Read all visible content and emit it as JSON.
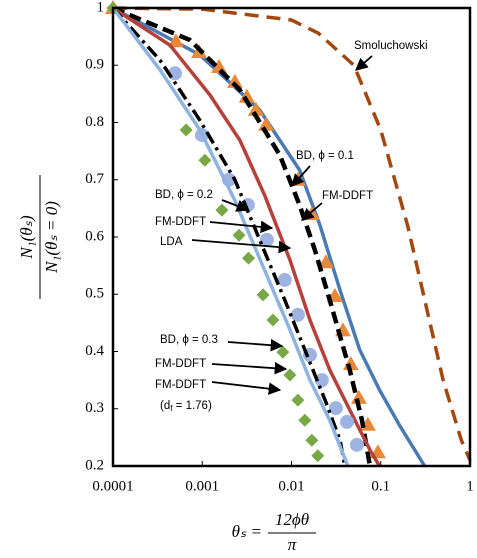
{
  "chart_data": {
    "type": "line",
    "xlim": [
      0.0001,
      1
    ],
    "ylim": [
      0.2,
      1
    ],
    "xscale": "log",
    "grid": false,
    "xticks": [
      0.0001,
      0.001,
      0.01,
      0.1,
      1
    ],
    "yticks": [
      0.2,
      0.3,
      0.4,
      0.5,
      0.6,
      0.7,
      0.8,
      0.9,
      1
    ],
    "xlabel": {
      "lhs": "θₛ =",
      "numerator": "12ϕθ",
      "denominator": "π"
    },
    "ylabel": {
      "numerator": "N₁(θₛ)",
      "denominator": "N₁(θₛ = 0)"
    },
    "annotations": [
      "Smoluchowski",
      "BD, ϕ = 0.1",
      "FM-DDFT",
      "BD, ϕ = 0.2",
      "FM-DDFT",
      "LDA",
      "BD, ϕ = 0.3",
      "FM-DDFT",
      "FM-DDFT",
      [
        "(d",
        "f",
        " = 1.76)"
      ]
    ],
    "series": [
      {
        "color": "#a3470f",
        "style": "dashed",
        "x": [
          0.0001,
          0.001,
          0.01,
          0.02,
          0.05,
          0.1,
          0.2,
          0.5,
          0.8,
          1
        ],
        "values": [
          1,
          0.998,
          0.979,
          0.956,
          0.9,
          0.787,
          0.62,
          0.35,
          0.245,
          0.21
        ]
      },
      {
        "color": "#4a7ab5",
        "style": "solid",
        "x": [
          0.0001,
          0.00094,
          0.0044,
          0.0123,
          0.0208,
          0.035,
          0.0581,
          0.0968,
          0.161,
          0.31
        ],
        "values": [
          1,
          0.918,
          0.822,
          0.717,
          0.621,
          0.507,
          0.403,
          0.333,
          0.272,
          0.2
        ]
      },
      {
        "color": "#e8893a",
        "style": "triangle",
        "x": [
          0.0001,
          0.000507,
          0.00092,
          0.00154,
          0.00232,
          0.00316,
          0.004,
          0.0052,
          0.0118,
          0.0169,
          0.0243,
          0.0306,
          0.0377,
          0.0462,
          0.0569,
          0.0718,
          0.093
        ],
        "values": [
          1,
          0.942,
          0.923,
          0.897,
          0.871,
          0.845,
          0.822,
          0.796,
          0.7,
          0.64,
          0.556,
          0.497,
          0.437,
          0.378,
          0.319,
          0.272,
          0.224
        ]
      },
      {
        "color": "#000000",
        "style": "dashed-bold",
        "x": [
          0.0001,
          0.00073,
          0.00264,
          0.0074,
          0.0123,
          0.0183,
          0.0268,
          0.0449,
          0.0616,
          0.0757
        ],
        "values": [
          1,
          0.944,
          0.857,
          0.743,
          0.656,
          0.577,
          0.49,
          0.368,
          0.28,
          0.2
        ]
      },
      {
        "color": "#b6403a",
        "style": "solid",
        "x": [
          0.0001,
          0.000435,
          0.00122,
          0.00264,
          0.005,
          0.0096,
          0.0161,
          0.0268,
          0.0449,
          0.0757,
          0.0968
        ],
        "values": [
          1,
          0.935,
          0.848,
          0.769,
          0.673,
          0.56,
          0.455,
          0.368,
          0.298,
          0.228,
          0.2
        ]
      },
      {
        "color": "#9fb3e2",
        "style": "circle",
        "x": [
          0.000495,
          0.00099,
          0.00199,
          0.00325,
          0.0053,
          0.0084,
          0.0118,
          0.0161,
          0.0219,
          0.0314,
          0.0419,
          0.054
        ],
        "values": [
          0.886,
          0.778,
          0.7,
          0.656,
          0.595,
          0.525,
          0.464,
          0.394,
          0.35,
          0.301,
          0.277,
          0.237
        ]
      },
      {
        "color": "#000000",
        "style": "dashdot",
        "x": [
          0.0001,
          0.000336,
          0.00094,
          0.00232,
          0.0044,
          0.0084,
          0.0141,
          0.0238,
          0.035,
          0.0396
        ],
        "values": [
          1,
          0.909,
          0.804,
          0.7,
          0.595,
          0.49,
          0.403,
          0.315,
          0.245,
          0.2
        ]
      },
      {
        "color": "#8db3e2",
        "style": "solid",
        "x": [
          0.0001,
          0.000336,
          0.00094,
          0.00232,
          0.005,
          0.0096,
          0.0161,
          0.0268,
          0.0428
        ],
        "values": [
          1,
          0.892,
          0.787,
          0.664,
          0.542,
          0.438,
          0.35,
          0.28,
          0.2
        ]
      },
      {
        "color": "#77a845",
        "style": "diamond",
        "x": [
          0.0001,
          0.00066,
          0.00107,
          0.00166,
          0.00258,
          0.0033,
          0.0048,
          0.0062,
          0.008,
          0.0096,
          0.0118,
          0.0141,
          0.0169,
          0.0197
        ],
        "values": [
          1,
          0.787,
          0.734,
          0.647,
          0.603,
          0.563,
          0.499,
          0.455,
          0.399,
          0.359,
          0.315,
          0.28,
          0.245,
          0.218
        ]
      }
    ]
  }
}
